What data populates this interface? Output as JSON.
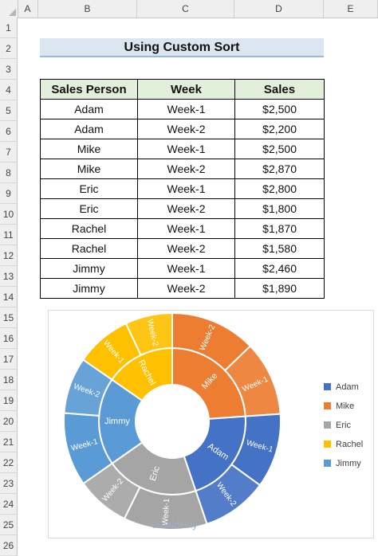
{
  "columns": [
    "A",
    "B",
    "C",
    "D",
    "E"
  ],
  "rows": [
    "1",
    "2",
    "3",
    "4",
    "5",
    "6",
    "7",
    "8",
    "9",
    "10",
    "11",
    "12",
    "13",
    "14",
    "15",
    "16",
    "17",
    "18",
    "19",
    "20",
    "21",
    "22",
    "23",
    "24",
    "25",
    "26"
  ],
  "title": "Using Custom Sort",
  "table": {
    "headers": [
      "Sales Person",
      "Week",
      "Sales"
    ],
    "rows": [
      [
        "Adam",
        "Week-1",
        "$2,500"
      ],
      [
        "Adam",
        "Week-2",
        "$2,200"
      ],
      [
        "Mike",
        "Week-1",
        "$2,500"
      ],
      [
        "Mike",
        "Week-2",
        "$2,870"
      ],
      [
        "Eric",
        "Week-1",
        "$2,800"
      ],
      [
        "Eric",
        "Week-2",
        "$1,800"
      ],
      [
        "Rachel",
        "Week-1",
        "$1,870"
      ],
      [
        "Rachel",
        "Week-2",
        "$1,580"
      ],
      [
        "Jimmy",
        "Week-1",
        "$2,460"
      ],
      [
        "Jimmy",
        "Week-2",
        "$1,890"
      ]
    ]
  },
  "chart_data": {
    "type": "sunburst",
    "title": "",
    "legend_position": "right",
    "series": [
      {
        "name": "Mike",
        "color": "#ed7d31",
        "children": [
          {
            "name": "Week-2",
            "value": 2870
          },
          {
            "name": "Week-1",
            "value": 2500
          }
        ]
      },
      {
        "name": "Adam",
        "color": "#4472c4",
        "children": [
          {
            "name": "Week-1",
            "value": 2500
          },
          {
            "name": "Week-2",
            "value": 2200
          }
        ]
      },
      {
        "name": "Eric",
        "color": "#a5a5a5",
        "children": [
          {
            "name": "Week-1",
            "value": 2800
          },
          {
            "name": "Week-2",
            "value": 1800
          }
        ]
      },
      {
        "name": "Jimmy",
        "color": "#5b9bd5",
        "children": [
          {
            "name": "Week-1",
            "value": 2460
          },
          {
            "name": "Week-2",
            "value": 1890
          }
        ]
      },
      {
        "name": "Rachel",
        "color": "#ffc000",
        "children": [
          {
            "name": "Week-1",
            "value": 1870
          },
          {
            "name": "Week-2",
            "value": 1580
          }
        ]
      }
    ],
    "legend": [
      {
        "name": "Adam",
        "color": "#4472c4"
      },
      {
        "name": "Mike",
        "color": "#ed7d31"
      },
      {
        "name": "Eric",
        "color": "#a5a5a5"
      },
      {
        "name": "Rachel",
        "color": "#ffc000"
      },
      {
        "name": "Jimmy",
        "color": "#5b9bd5"
      }
    ]
  },
  "watermark": "exceldemy"
}
